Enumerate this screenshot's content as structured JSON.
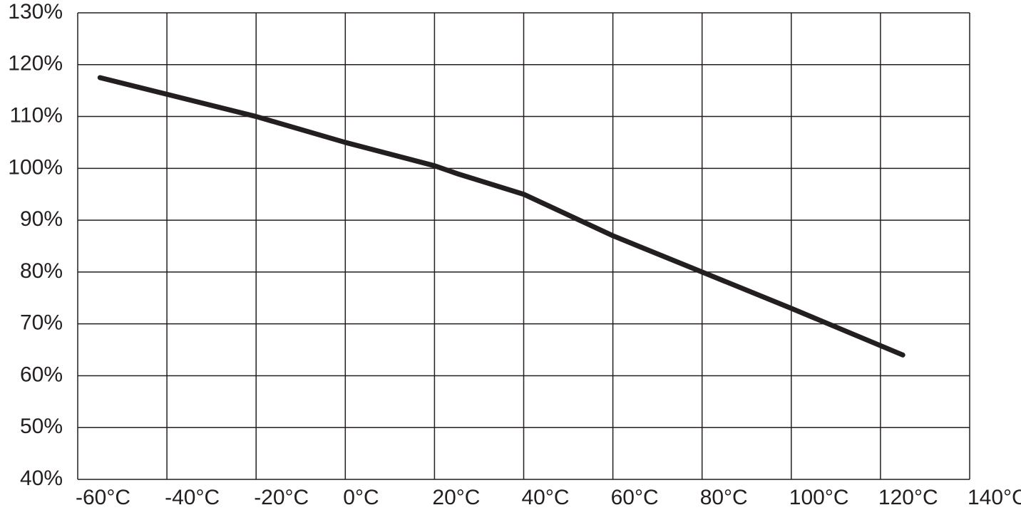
{
  "chart_data": {
    "type": "line",
    "x": [
      -55,
      -20,
      0,
      20,
      25,
      40,
      60,
      80,
      100,
      125
    ],
    "series": [
      {
        "color": "#231f20",
        "values": [
          117.5,
          110,
          105,
          100.5,
          99,
          95,
          87,
          80,
          73,
          64
        ]
      }
    ],
    "xlim": [
      -60,
      140
    ],
    "xticks": [
      {
        "value": -60,
        "label": "-60°C"
      },
      {
        "value": -40,
        "label": "-40°C"
      },
      {
        "value": -20,
        "label": "-20°C"
      },
      {
        "value": 0,
        "label": "0°C"
      },
      {
        "value": 20,
        "label": "20°C"
      },
      {
        "value": 40,
        "label": "40°C"
      },
      {
        "value": 60,
        "label": "60°C"
      },
      {
        "value": 80,
        "label": "80°C"
      },
      {
        "value": 100,
        "label": "100°C"
      },
      {
        "value": 120,
        "label": "120°C"
      },
      {
        "value": 140,
        "label": "140°C"
      }
    ],
    "ylim": [
      40,
      130
    ],
    "yticks": [
      {
        "value": 40,
        "label": "40%"
      },
      {
        "value": 50,
        "label": "50%"
      },
      {
        "value": 60,
        "label": "60%"
      },
      {
        "value": 70,
        "label": "70%"
      },
      {
        "value": 80,
        "label": "80%"
      },
      {
        "value": 90,
        "label": "90%"
      },
      {
        "value": 100,
        "label": "100%"
      },
      {
        "value": 110,
        "label": "110%"
      },
      {
        "value": 120,
        "label": "120%"
      },
      {
        "value": 130,
        "label": "130%"
      }
    ],
    "grid": true
  }
}
